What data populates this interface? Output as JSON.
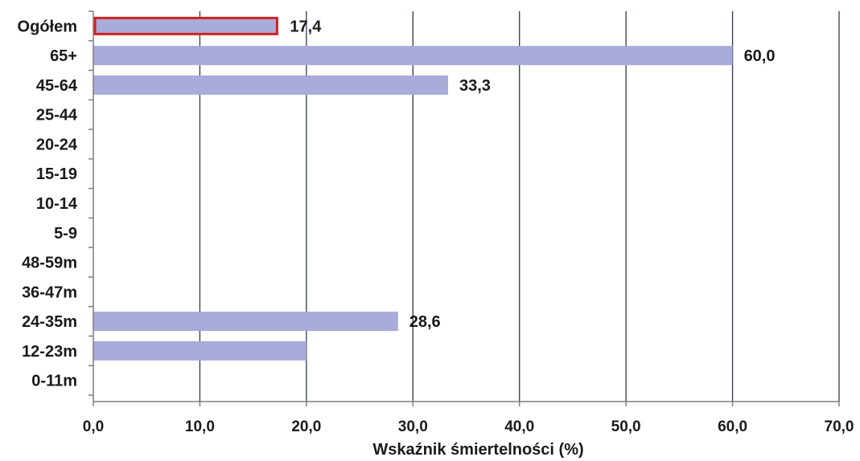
{
  "chart_data": {
    "type": "bar",
    "orientation": "horizontal",
    "categories": [
      "Ogółem",
      "65+",
      "45-64",
      "25-44",
      "20-24",
      "15-19",
      "10-14",
      "5-9",
      "48-59m",
      "36-47m",
      "24-35m",
      "12-23m",
      "0-11m"
    ],
    "values": [
      17.4,
      60.0,
      33.3,
      0,
      0,
      0,
      0,
      0,
      0,
      0,
      28.6,
      20.0,
      0
    ],
    "data_labels": [
      "17,4",
      "60,0",
      "33,3",
      "",
      "",
      "",
      "",
      "",
      "",
      "",
      "28,6",
      "",
      ""
    ],
    "highlight_index": 0,
    "xlim": [
      0,
      70
    ],
    "x_ticks": [
      0,
      10,
      20,
      30,
      40,
      50,
      60,
      70
    ],
    "x_tick_labels": [
      "0,0",
      "10,0",
      "20,0",
      "30,0",
      "40,0",
      "50,0",
      "60,0",
      "70,0"
    ],
    "xlabel": "Wskaźnik śmiertelności  (%)",
    "grid": "vertical",
    "legend": "none",
    "colors": {
      "bar": "#a9abd9",
      "highlight_border": "#d42020",
      "grid": "#2f3a4a",
      "axis": "#7f7f7f",
      "text": "#1a1a1a"
    }
  }
}
